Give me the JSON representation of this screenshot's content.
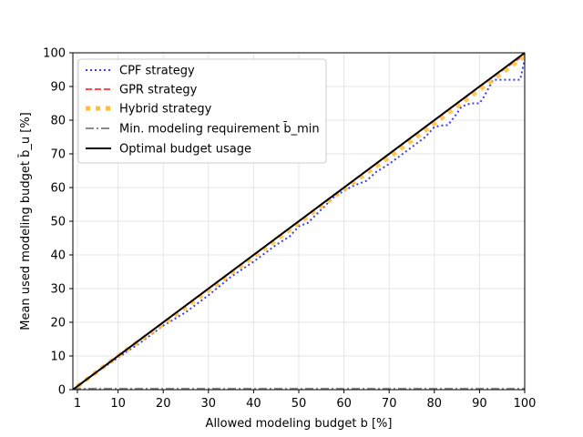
{
  "chart_data": {
    "type": "line",
    "title": "",
    "xlabel": "Allowed modeling budget b [%]",
    "ylabel": "Mean used modeling budget b̄_u [%]",
    "xlim": [
      0,
      100
    ],
    "ylim": [
      0,
      100
    ],
    "x_ticks": [
      1,
      10,
      20,
      30,
      40,
      50,
      60,
      70,
      80,
      90,
      100
    ],
    "y_ticks": [
      0,
      10,
      20,
      30,
      40,
      50,
      60,
      70,
      80,
      90,
      100
    ],
    "grid": true,
    "legend_position": "upper-left",
    "legend": [
      "CPF strategy",
      "GPR strategy",
      "Hybrid strategy",
      "Min. modeling requirement b̄_min",
      "Optimal budget usage"
    ],
    "series": [
      {
        "name": "CPF strategy",
        "color": "#3b3bff",
        "style": "dotted",
        "x": [
          1,
          5,
          10,
          15,
          20,
          25,
          30,
          35,
          40,
          45,
          48,
          50,
          52,
          55,
          58,
          60,
          62,
          65,
          67,
          70,
          72,
          75,
          78,
          80,
          82,
          83,
          85,
          86,
          88,
          90,
          91,
          93,
          95,
          97,
          99,
          100
        ],
        "y": [
          1,
          5,
          9.5,
          14,
          19,
          23,
          28,
          33.5,
          38,
          43,
          45.5,
          48.5,
          49.5,
          53.5,
          57.5,
          59,
          60.5,
          62,
          64.5,
          67,
          69,
          72,
          75,
          78,
          78.5,
          78.5,
          82,
          84,
          85,
          85,
          87,
          92,
          92,
          92,
          92,
          98
        ]
      },
      {
        "name": "GPR strategy",
        "color": "#ff4c4c",
        "style": "dashed",
        "x": [
          1,
          10,
          20,
          30,
          40,
          50,
          60,
          70,
          80,
          90,
          100
        ],
        "y": [
          1,
          10,
          20,
          30,
          40,
          50,
          60,
          70,
          80,
          90,
          99.5
        ]
      },
      {
        "name": "Hybrid strategy",
        "color": "#ffbe3c",
        "style": "dotted-thick",
        "x": [
          1,
          10,
          20,
          30,
          40,
          50,
          60,
          70,
          80,
          90,
          100
        ],
        "y": [
          1,
          10,
          19.5,
          29.5,
          39.5,
          49.5,
          59.5,
          69,
          79,
          89,
          99
        ]
      },
      {
        "name": "Min. modeling requirement b̄_min",
        "color": "#8c8c8c",
        "style": "dashdot",
        "x": [
          0,
          100
        ],
        "y": [
          0.3,
          0.3
        ]
      },
      {
        "name": "Optimal budget usage",
        "color": "#000000",
        "style": "solid",
        "x": [
          0,
          100
        ],
        "y": [
          0,
          100
        ]
      }
    ]
  }
}
